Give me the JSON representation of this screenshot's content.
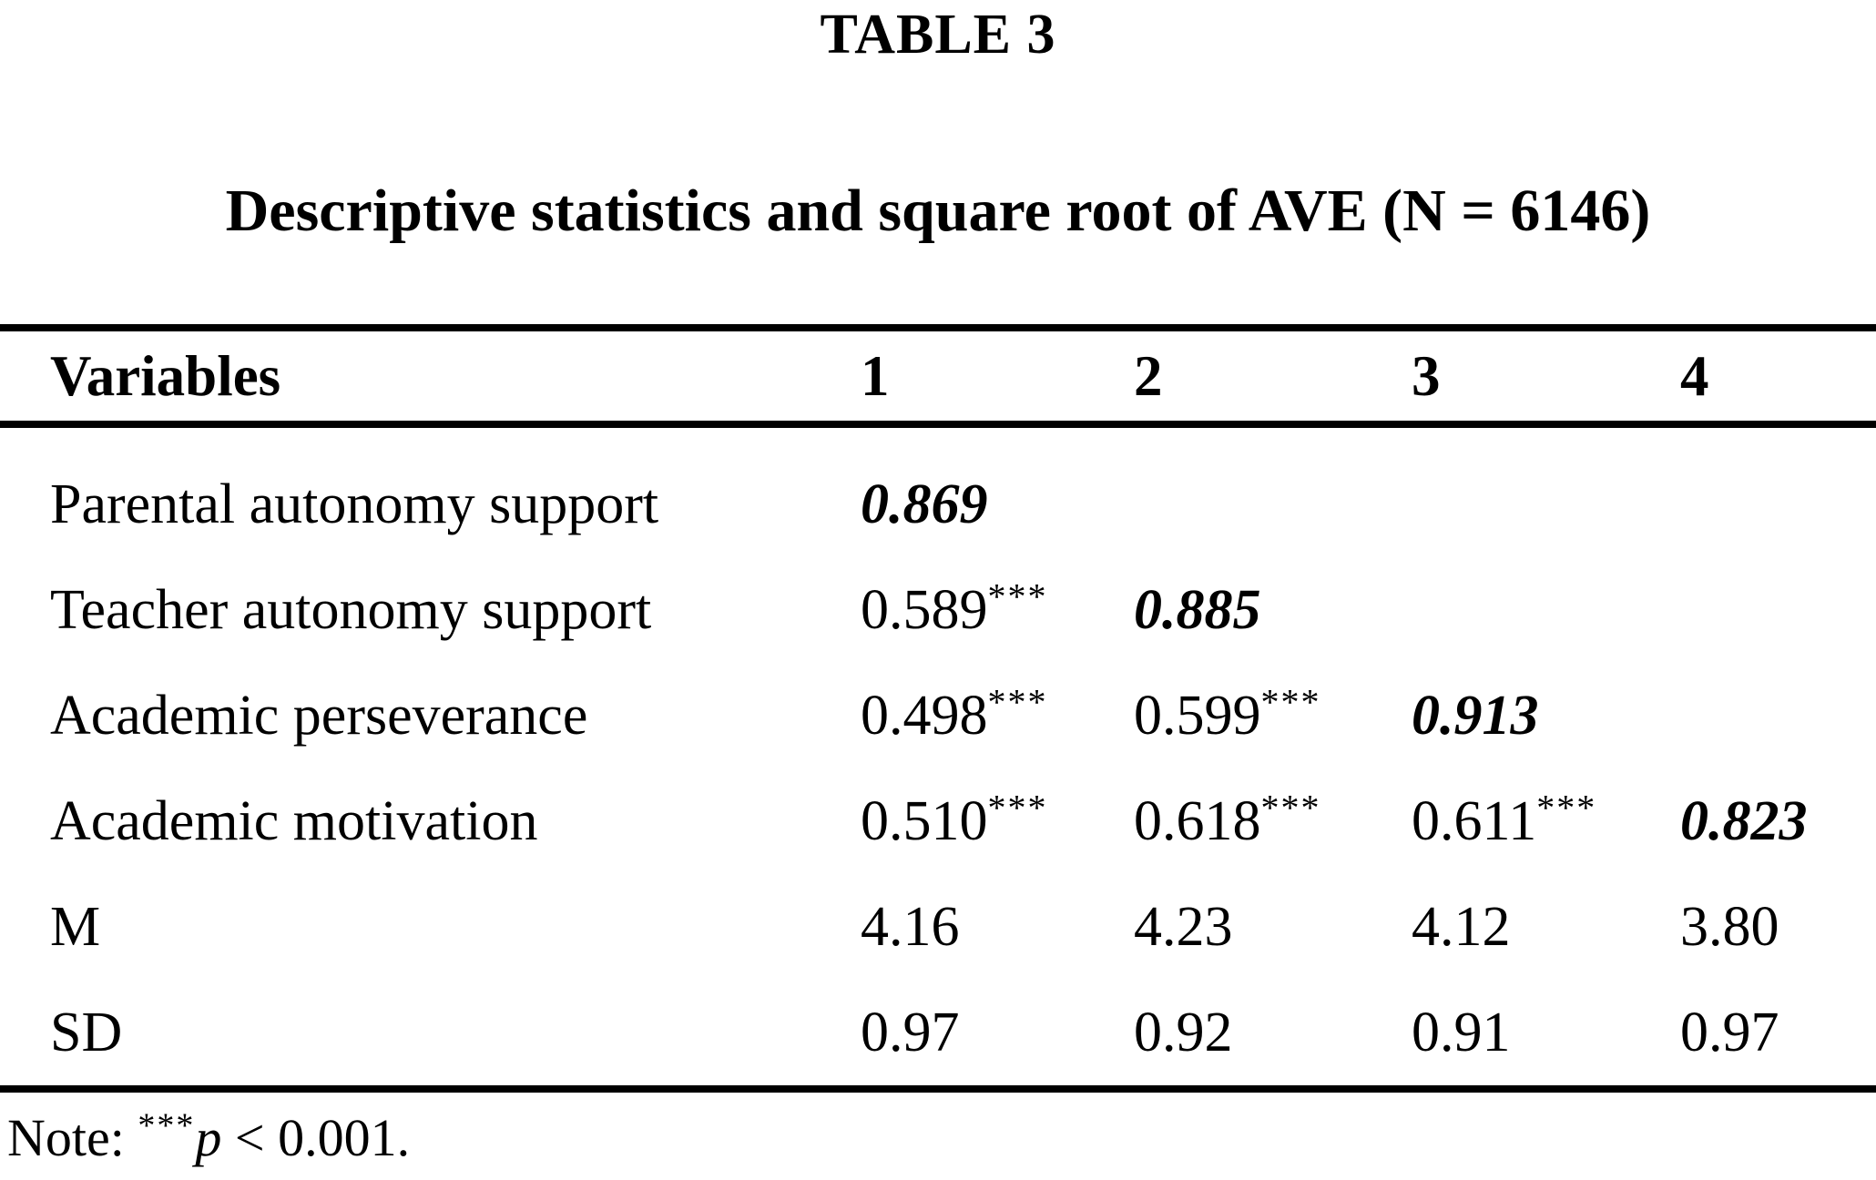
{
  "title": "TABLE 3",
  "caption": "Descriptive statistics and square root of AVE (N = 6146)",
  "columns": [
    "Variables",
    "1",
    "2",
    "3",
    "4"
  ],
  "rows": [
    {
      "label": "Parental autonomy support",
      "cells": [
        {
          "v": "0.869",
          "cls": "diag"
        },
        null,
        null,
        null
      ]
    },
    {
      "label": "Teacher autonomy support",
      "cells": [
        {
          "v": "0.589",
          "sup": "***"
        },
        {
          "v": "0.885",
          "cls": "diag"
        },
        null,
        null
      ]
    },
    {
      "label": "Academic perseverance",
      "cells": [
        {
          "v": "0.498",
          "sup": "***"
        },
        {
          "v": "0.599",
          "sup": "***"
        },
        {
          "v": "0.913",
          "cls": "diag"
        },
        null
      ]
    },
    {
      "label": "Academic motivation",
      "cells": [
        {
          "v": "0.510",
          "sup": "***"
        },
        {
          "v": "0.618",
          "sup": "***"
        },
        {
          "v": "0.611",
          "sup": "***"
        },
        {
          "v": "0.823",
          "cls": "diag"
        }
      ]
    },
    {
      "label": "M",
      "cells": [
        {
          "v": "4.16"
        },
        {
          "v": "4.23"
        },
        {
          "v": "4.12"
        },
        {
          "v": "3.80"
        }
      ]
    },
    {
      "label": "SD",
      "cells": [
        {
          "v": "0.97"
        },
        {
          "v": "0.92"
        },
        {
          "v": "0.91"
        },
        {
          "v": "0.97"
        }
      ]
    }
  ],
  "note": {
    "prefix": "Note: ",
    "sup": "***",
    "p": "p",
    "rest": " < 0.001."
  },
  "colors": {
    "text": "#000000",
    "background": "#ffffff",
    "rule": "#000000"
  }
}
